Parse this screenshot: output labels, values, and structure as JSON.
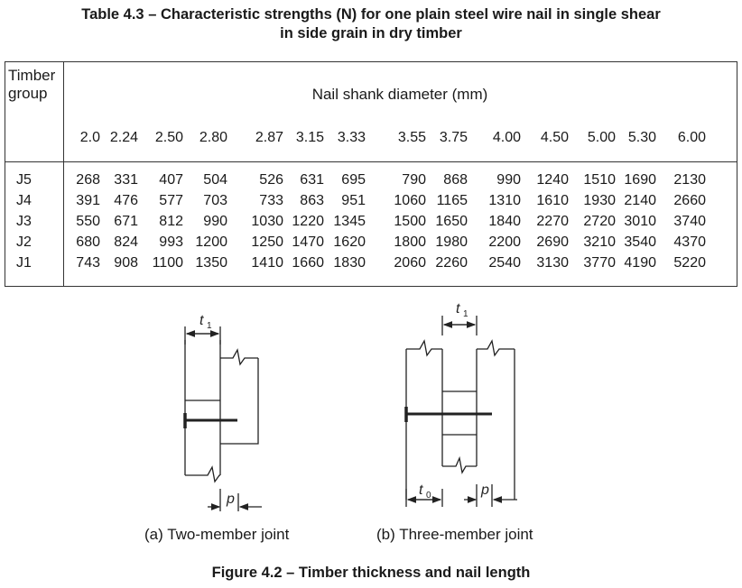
{
  "table": {
    "title_line1": "Table 4.3 – Characteristic strengths (N) for one plain steel wire nail in single shear",
    "title_line2": "in side grain in dry timber",
    "group_label": "Timber\ngroup",
    "diameter_label": "Nail shank diameter (mm)",
    "diameters": [
      "2.0",
      "2.24",
      "2.50",
      "2.80",
      "2.87",
      "3.15",
      "3.33",
      "3.55",
      "3.75",
      "4.00",
      "4.50",
      "5.00",
      "5.30",
      "6.00"
    ],
    "rows": [
      {
        "group": "J5",
        "values": [
          "268",
          "331",
          "407",
          "504",
          "526",
          "631",
          "695",
          "790",
          "868",
          "990",
          "1240",
          "1510",
          "1690",
          "2130"
        ]
      },
      {
        "group": "J4",
        "values": [
          "391",
          "476",
          "577",
          "703",
          "733",
          "863",
          "951",
          "1060",
          "1165",
          "1310",
          "1610",
          "1930",
          "2140",
          "2660"
        ]
      },
      {
        "group": "J3",
        "values": [
          "550",
          "671",
          "812",
          "990",
          "1030",
          "1220",
          "1345",
          "1500",
          "1650",
          "1840",
          "2270",
          "2720",
          "3010",
          "3740"
        ]
      },
      {
        "group": "J2",
        "values": [
          "680",
          "824",
          "993",
          "1200",
          "1250",
          "1470",
          "1620",
          "1800",
          "1980",
          "2200",
          "2690",
          "3210",
          "3540",
          "4370"
        ]
      },
      {
        "group": "J1",
        "values": [
          "743",
          "908",
          "1100",
          "1350",
          "1410",
          "1660",
          "1830",
          "2060",
          "2260",
          "2540",
          "3130",
          "3770",
          "4190",
          "5220"
        ]
      }
    ]
  },
  "figure": {
    "caption_a": "(a) Two-member joint",
    "caption_b": "(b) Three-member joint",
    "label_t1": "t",
    "label_t1_sub": "1",
    "label_t0": "t",
    "label_t0_sub": "0",
    "label_p": "p",
    "title": "Figure 4.2 – Timber thickness and nail length"
  }
}
